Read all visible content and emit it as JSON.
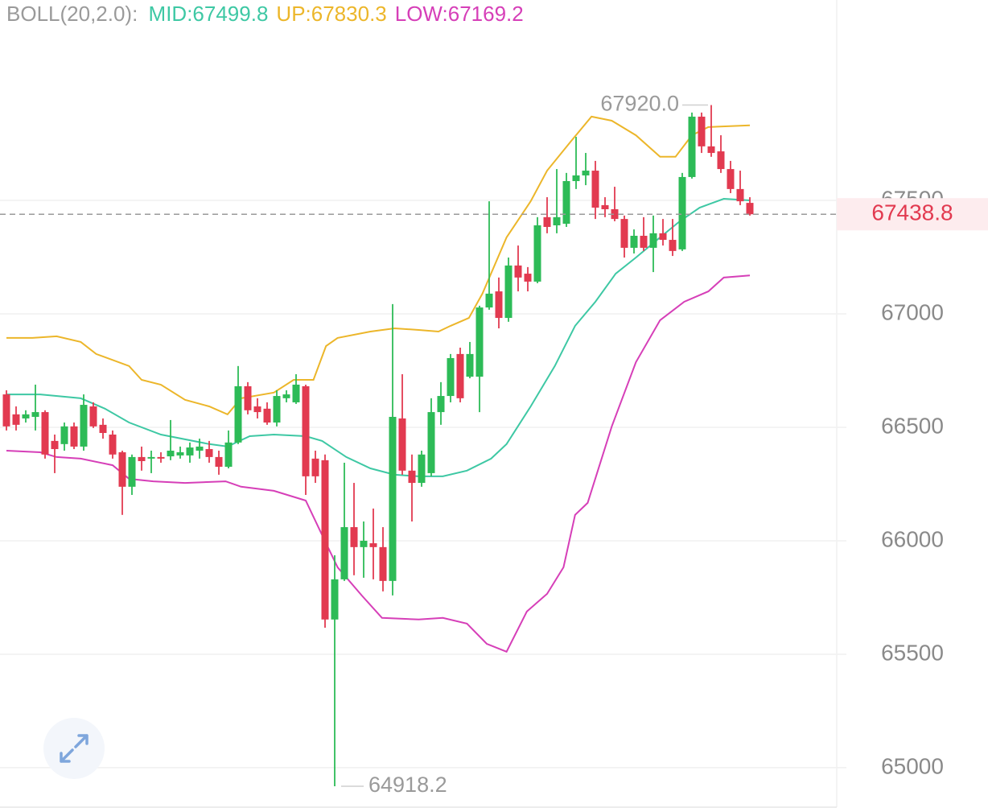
{
  "chart_data": {
    "type": "candlestick",
    "indicator": "BOLL(20,2.0):",
    "up_color": "#2dbb57",
    "down_color": "#e23a50",
    "categories": [
      null,
      null,
      null,
      null,
      null,
      null,
      null,
      null,
      null,
      null,
      null,
      null,
      null,
      null,
      null,
      null,
      null,
      null,
      null,
      null,
      null,
      null,
      null,
      null,
      null,
      null,
      null,
      null,
      null,
      null,
      null,
      null,
      null,
      null,
      null,
      null,
      null,
      null,
      null,
      null,
      null,
      null,
      null,
      null,
      null,
      null,
      null,
      null,
      null,
      null,
      null,
      null,
      null,
      null,
      null,
      null,
      null,
      null,
      null,
      null,
      null,
      null,
      null,
      null,
      null,
      null,
      null,
      null,
      null,
      null,
      null,
      null,
      null,
      null,
      null,
      null,
      null,
      null
    ],
    "open": [
      66645,
      66557,
      66539,
      66546,
      66567,
      66440,
      66426,
      66504,
      66415,
      66592,
      66511,
      66468,
      66390,
      66238,
      66369,
      66362,
      66369,
      66372,
      66376,
      66376,
      66397,
      66404,
      66369,
      66326,
      66433,
      66681,
      66592,
      66582,
      66521,
      66628,
      66610,
      66681,
      66362,
      66355,
      65653,
      65830,
      66060,
      65972,
      65989,
      65972,
      65823,
      66539,
      66309,
      66255,
      66298,
      66567,
      66638,
      66823,
      66723,
      66723,
      67028,
      67099,
      66982,
      67213,
      67177,
      67142,
      67426,
      67390,
      67397,
      67585,
      67610,
      67631,
      67479,
      67461,
      67418,
      67291,
      67344,
      67291,
      67355,
      67326,
      67284,
      67603,
      67869,
      67738,
      67716,
      67638,
      67550,
      67489
    ],
    "high": [
      66663,
      66592,
      66575,
      66688,
      66575,
      66468,
      66521,
      66521,
      66645,
      66610,
      66539,
      66486,
      66397,
      66380,
      66415,
      66397,
      66390,
      66532,
      66415,
      66433,
      66450,
      66440,
      66397,
      66486,
      66770,
      66699,
      66628,
      66610,
      66663,
      66663,
      66734,
      66688,
      66397,
      66380,
      65936,
      66344,
      66255,
      66085,
      66142,
      66060,
      67043,
      66734,
      66380,
      66397,
      66628,
      66699,
      66823,
      66851,
      66876,
      67036,
      67496,
      67160,
      67248,
      67301,
      67206,
      67426,
      67514,
      67638,
      67621,
      67780,
      67709,
      67674,
      67514,
      67560,
      67433,
      67372,
      67426,
      67433,
      67418,
      67418,
      67621,
      67887,
      67887,
      67920,
      67787,
      67674,
      67631,
      67514
    ],
    "low": [
      66486,
      66486,
      66521,
      66486,
      66362,
      66298,
      66397,
      66404,
      66397,
      66497,
      66450,
      66362,
      66114,
      66202,
      66309,
      66298,
      66344,
      66355,
      66362,
      66344,
      66362,
      66344,
      66291,
      66319,
      66426,
      66557,
      66539,
      66511,
      66504,
      66610,
      66603,
      66202,
      66255,
      65617,
      64918.2,
      65823,
      65848,
      65837,
      65830,
      65777,
      65759,
      66291,
      66085,
      66238,
      66284,
      66511,
      66610,
      66610,
      66716,
      66567,
      67018,
      66936,
      66965,
      67099,
      67099,
      67135,
      67355,
      67355,
      67383,
      67550,
      67567,
      67418,
      67426,
      67408,
      67248,
      67266,
      67277,
      67184,
      67301,
      67255,
      67277,
      67596,
      67709,
      67692,
      67621,
      67532,
      67479,
      67433
    ],
    "close": [
      66504,
      66511,
      66557,
      66567,
      66380,
      66404,
      66504,
      66415,
      66599,
      66504,
      66475,
      66380,
      66238,
      66369,
      66351,
      66369,
      66362,
      66397,
      66390,
      66411,
      66415,
      66369,
      66326,
      66433,
      66681,
      66575,
      66567,
      66521,
      66638,
      66645,
      66688,
      66284,
      66284,
      65653,
      65830,
      66060,
      65972,
      66000,
      65972,
      65823,
      66546,
      66309,
      66255,
      66380,
      66567,
      66638,
      66805,
      66628,
      66823,
      67028,
      67089,
      66982,
      67213,
      67160,
      67142,
      67390,
      67383,
      67426,
      67585,
      67610,
      67631,
      67468,
      67461,
      67418,
      67291,
      67344,
      67291,
      67355,
      67326,
      67277,
      67603,
      67869,
      67738,
      67709,
      67638,
      67550,
      67496,
      67438.8
    ],
    "series": [
      {
        "name": "MID:67499.8",
        "color": "#3ec8a4",
        "x": [
          0,
          3.5,
          7.7,
          10.2,
          12.7,
          16,
          21,
          22.9,
          25.2,
          27.7,
          31,
          32.7,
          35.2,
          37.7,
          40.2,
          42.7,
          45.2,
          47.7,
          50.2,
          51.8,
          54.3,
          56.8,
          58.9,
          61,
          63.1,
          65.2,
          67.7,
          69.75,
          71.8,
          74.3,
          77
        ],
        "values": [
          66645,
          66645,
          66628,
          66582,
          66521,
          66468,
          66426,
          66415,
          66461,
          66468,
          66461,
          66440,
          66369,
          66319,
          66291,
          66284,
          66284,
          66309,
          66362,
          66426,
          66592,
          66770,
          66947,
          67053,
          67177,
          67248,
          67337,
          67408,
          67468,
          67507,
          67499.8
        ]
      },
      {
        "name": "UP:67830.3",
        "color": "#ecb62a",
        "x": [
          0,
          2.7,
          5.2,
          7.7,
          9.3,
          12.7,
          14,
          16,
          18.5,
          21,
          22.9,
          24.3,
          27.7,
          29.75,
          31.8,
          33.1,
          34.3,
          37.7,
          40.2,
          42.7,
          44.75,
          46,
          47.9,
          49.3,
          51.8,
          54.3,
          56,
          58.5,
          60.6,
          62.7,
          65.2,
          67.7,
          69.3,
          71,
          72.7,
          77
        ],
        "values": [
          66894,
          66894,
          66901,
          66876,
          66823,
          66770,
          66709,
          66688,
          66621,
          66592,
          66557,
          66628,
          66653,
          66709,
          66709,
          66858,
          66894,
          66922,
          66936,
          66929,
          66922,
          66947,
          66982,
          67089,
          67337,
          67496,
          67631,
          67762,
          67869,
          67851,
          67787,
          67692,
          67692,
          67787,
          67823,
          67830.3
        ]
      },
      {
        "name": "LOW:67169.2",
        "color": "#d63fb8",
        "x": [
          0,
          3.5,
          5.2,
          7.7,
          11,
          12.7,
          15.2,
          18.5,
          22.7,
          24.3,
          27.7,
          31,
          32.7,
          34.3,
          36.8,
          38.9,
          42.7,
          45.2,
          47.7,
          49.75,
          51.8,
          53.9,
          56,
          57.7,
          58.9,
          60.2,
          62.7,
          65.2,
          67.7,
          70.2,
          72.7,
          74.3,
          77
        ],
        "values": [
          66397,
          66390,
          66369,
          66362,
          66333,
          66273,
          66262,
          66255,
          66262,
          66238,
          66220,
          66177,
          66025,
          65883,
          65759,
          65660,
          65653,
          65660,
          65635,
          65546,
          65511,
          65688,
          65766,
          65883,
          66114,
          66167,
          66504,
          66787,
          66972,
          67053,
          67099,
          67160,
          67169.2
        ]
      }
    ],
    "ylim": [
      64826,
      68383
    ],
    "yticks": [
      65000,
      65500,
      66000,
      66500,
      67000,
      67500
    ],
    "grid": true,
    "high_label": {
      "value": 67920,
      "label": "67920.0"
    },
    "low_label": {
      "value": 64918.2,
      "label": "64918.2"
    },
    "last_price": {
      "value": 67438.8,
      "label": "67438.8"
    }
  }
}
